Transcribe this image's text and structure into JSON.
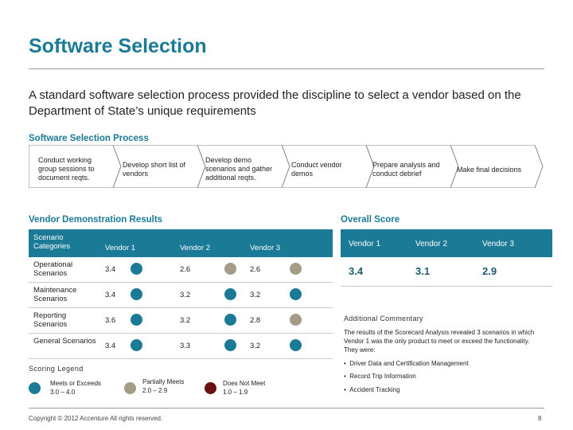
{
  "header": {
    "title": "Software Selection",
    "subtitle": "A standard software selection process provided the discipline to select a vendor based on the Department of State’s unique requirements"
  },
  "process": {
    "heading": "Software Selection Process",
    "steps": [
      "Conduct working group sessions to document reqts.",
      "Develop short list of vendors",
      "Develop demo scenarios and gather additional reqts.",
      "Conduct vendor demos",
      "Prepare analysis and conduct debrief",
      "Make final decisions"
    ]
  },
  "vendor_demo": {
    "heading": "Vendor Demonstration Results",
    "columns": [
      "Scenario Categories",
      "Vendor 1",
      "Vendor 2",
      "Vendor 3"
    ],
    "rows": [
      {
        "category": "Operational Scenarios",
        "scores": [
          "3.4",
          "2.6",
          "2.6"
        ],
        "ratings": [
          "exceeds",
          "partial",
          "partial"
        ]
      },
      {
        "category": "Maintenance Scenarios",
        "scores": [
          "3.4",
          "3.2",
          "3.2"
        ],
        "ratings": [
          "exceeds",
          "exceeds",
          "exceeds"
        ]
      },
      {
        "category": "Reporting Scenarios",
        "scores": [
          "3.6",
          "3.2",
          "2.8"
        ],
        "ratings": [
          "exceeds",
          "exceeds",
          "partial"
        ]
      },
      {
        "category": "General Scenarios",
        "scores": [
          "3.4",
          "3.3",
          "3.2"
        ],
        "ratings": [
          "exceeds",
          "exceeds",
          "exceeds"
        ]
      }
    ]
  },
  "overall_score": {
    "heading": "Overall Score",
    "columns": [
      "Vendor 1",
      "Vendor 2",
      "Vendor 3"
    ],
    "values": [
      "3.4",
      "3.1",
      "2.9"
    ]
  },
  "commentary": {
    "heading": "Additional Commentary",
    "body": "The results of the Scorecard Analysis revealed 3 scenarios in which Vendor 1 was the only product to meet or exceed the functionality. They were:",
    "bullets": [
      "Driver Data and Certification Management",
      "Record Trip Information",
      "Accident Tracking"
    ]
  },
  "legend": {
    "heading": "Scoring Legend",
    "items": [
      {
        "label": "Meets or Exceeds",
        "range": "3.0 – 4.0",
        "color": "#1b7a96"
      },
      {
        "label": "Partially Meets",
        "range": "2.0 – 2.9",
        "color": "#a39d87"
      },
      {
        "label": "Does Not Meet",
        "range": "1.0 – 1.9",
        "color": "#6b0f0f"
      }
    ]
  },
  "colors": {
    "exceeds": "#1b7a96",
    "partial": "#a39d87",
    "not_met": "#6b0f0f",
    "accent": "#1b7a96"
  },
  "footer": {
    "copyright": "Copyright © 2012 Accenture  All rights reserved.",
    "page": "8"
  }
}
